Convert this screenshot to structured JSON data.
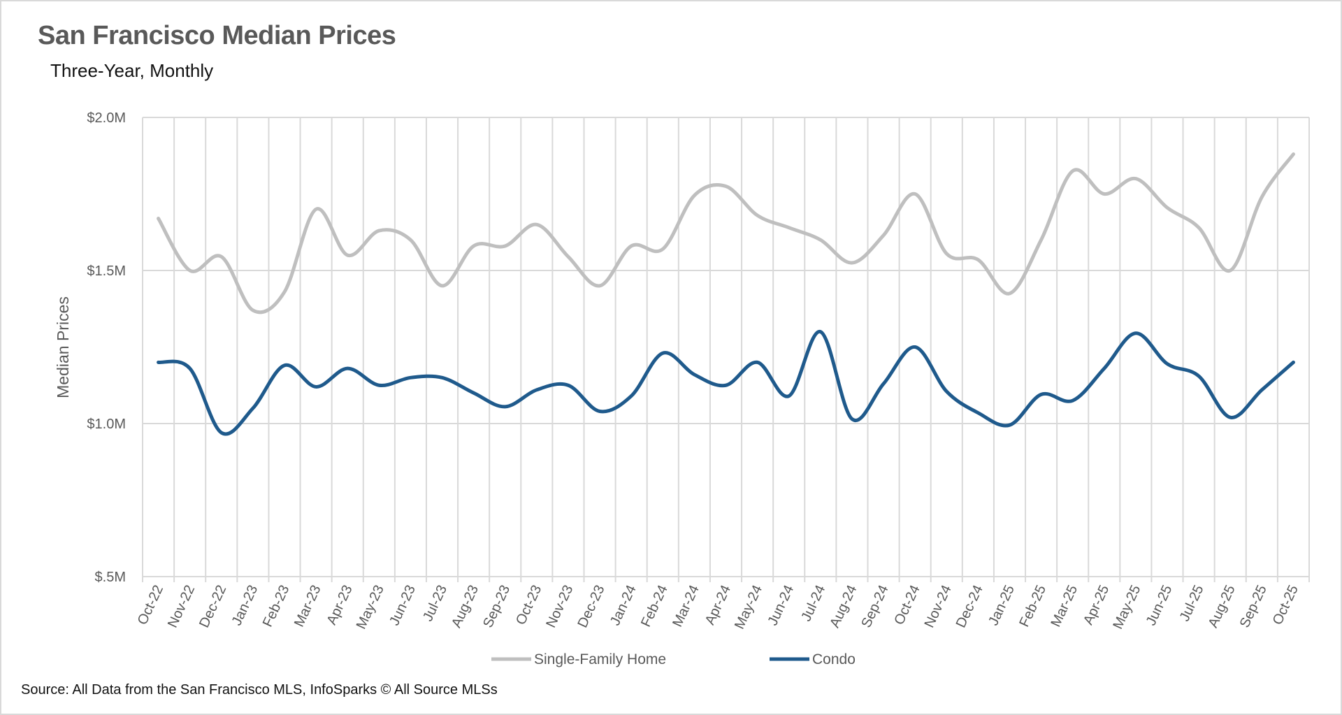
{
  "chart_data": {
    "type": "line",
    "title": "San Francisco Median Prices",
    "subtitle": "Three-Year, Monthly",
    "ylabel": "Median Prices",
    "xlabel": "",
    "ylim": [
      0.5,
      2.0
    ],
    "yticks": [
      {
        "value": 0.5,
        "label": "$.5M"
      },
      {
        "value": 1.0,
        "label": "$1.0M"
      },
      {
        "value": 1.5,
        "label": "$1.5M"
      },
      {
        "value": 2.0,
        "label": "$2.0M"
      }
    ],
    "categories": [
      "Oct-22",
      "Nov-22",
      "Dec-22",
      "Jan-23",
      "Feb-23",
      "Mar-23",
      "Apr-23",
      "May-23",
      "Jun-23",
      "Jul-23",
      "Aug-23",
      "Sep-23",
      "Oct-23",
      "Nov-23",
      "Dec-23",
      "Jan-24",
      "Feb-24",
      "Mar-24",
      "Apr-24",
      "May-24",
      "Jun-24",
      "Jul-24",
      "Aug-24",
      "Sep-24",
      "Oct-24",
      "Nov-24",
      "Dec-24",
      "Jan-25",
      "Feb-25",
      "Mar-25",
      "Apr-25",
      "May-25",
      "Jun-25",
      "Jul-25",
      "Aug-25",
      "Sep-25",
      "Oct-25"
    ],
    "series": [
      {
        "name": "Single-Family Home",
        "color": "#bfbfbf",
        "values": [
          1.67,
          1.5,
          1.545,
          1.37,
          1.43,
          1.7,
          1.55,
          1.63,
          1.6,
          1.45,
          1.58,
          1.58,
          1.65,
          1.545,
          1.45,
          1.58,
          1.57,
          1.745,
          1.775,
          1.68,
          1.64,
          1.6,
          1.525,
          1.615,
          1.75,
          1.555,
          1.535,
          1.425,
          1.6,
          1.825,
          1.75,
          1.8,
          1.705,
          1.64,
          1.5,
          1.74,
          1.88
        ]
      },
      {
        "name": "Condo",
        "color": "#1f5a8c",
        "values": [
          1.2,
          1.18,
          0.97,
          1.05,
          1.19,
          1.12,
          1.18,
          1.125,
          1.15,
          1.15,
          1.1,
          1.055,
          1.11,
          1.125,
          1.04,
          1.09,
          1.23,
          1.16,
          1.125,
          1.2,
          1.09,
          1.3,
          1.015,
          1.13,
          1.25,
          1.105,
          1.035,
          0.995,
          1.095,
          1.075,
          1.18,
          1.295,
          1.195,
          1.155,
          1.02,
          1.11,
          1.2
        ]
      }
    ],
    "grid": {
      "horizontal": true,
      "vertical": true
    },
    "legend_position": "bottom",
    "source": "Source: All Data from the San Francisco MLS, InfoSparks © All Source MLSs"
  }
}
